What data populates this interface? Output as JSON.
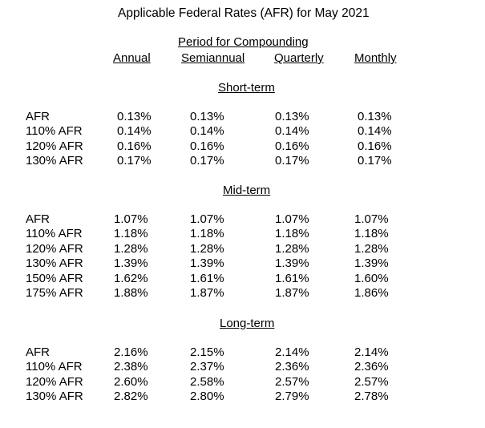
{
  "title": "Applicable Federal Rates (AFR) for May 2021",
  "period_header": "Period for Compounding",
  "columns": [
    "Annual",
    "Semiannual",
    "Quarterly",
    "Monthly"
  ],
  "sections": [
    {
      "heading": "Short-term",
      "rows": [
        {
          "label": "AFR",
          "values": [
            "0.13%",
            "0.13%",
            "0.13%",
            "0.13%"
          ]
        },
        {
          "label": "110% AFR",
          "values": [
            "0.14%",
            "0.14%",
            "0.14%",
            "0.14%"
          ]
        },
        {
          "label": "120% AFR",
          "values": [
            "0.16%",
            "0.16%",
            "0.16%",
            "0.16%"
          ]
        },
        {
          "label": "130% AFR",
          "values": [
            "0.17%",
            "0.17%",
            "0.17%",
            "0.17%"
          ]
        }
      ]
    },
    {
      "heading": "Mid-term",
      "rows": [
        {
          "label": "AFR",
          "values": [
            "1.07%",
            "1.07%",
            "1.07%",
            "1.07%"
          ]
        },
        {
          "label": "110% AFR",
          "values": [
            "1.18%",
            "1.18%",
            "1.18%",
            "1.18%"
          ]
        },
        {
          "label": "120% AFR",
          "values": [
            "1.28%",
            "1.28%",
            "1.28%",
            "1.28%"
          ]
        },
        {
          "label": "130% AFR",
          "values": [
            "1.39%",
            "1.39%",
            "1.39%",
            "1.39%"
          ]
        },
        {
          "label": "150% AFR",
          "values": [
            "1.62%",
            "1.61%",
            "1.61%",
            "1.60%"
          ]
        },
        {
          "label": "175% AFR",
          "values": [
            "1.88%",
            "1.87%",
            "1.87%",
            "1.86%"
          ]
        }
      ]
    },
    {
      "heading": "Long-term",
      "rows": [
        {
          "label": "AFR",
          "values": [
            "2.16%",
            "2.15%",
            "2.14%",
            "2.14%"
          ]
        },
        {
          "label": "110% AFR",
          "values": [
            "2.38%",
            "2.37%",
            "2.36%",
            "2.36%"
          ]
        },
        {
          "label": "120% AFR",
          "values": [
            "2.60%",
            "2.58%",
            "2.57%",
            "2.57%"
          ]
        },
        {
          "label": "130% AFR",
          "values": [
            "2.82%",
            "2.80%",
            "2.79%",
            "2.78%"
          ]
        }
      ]
    }
  ]
}
